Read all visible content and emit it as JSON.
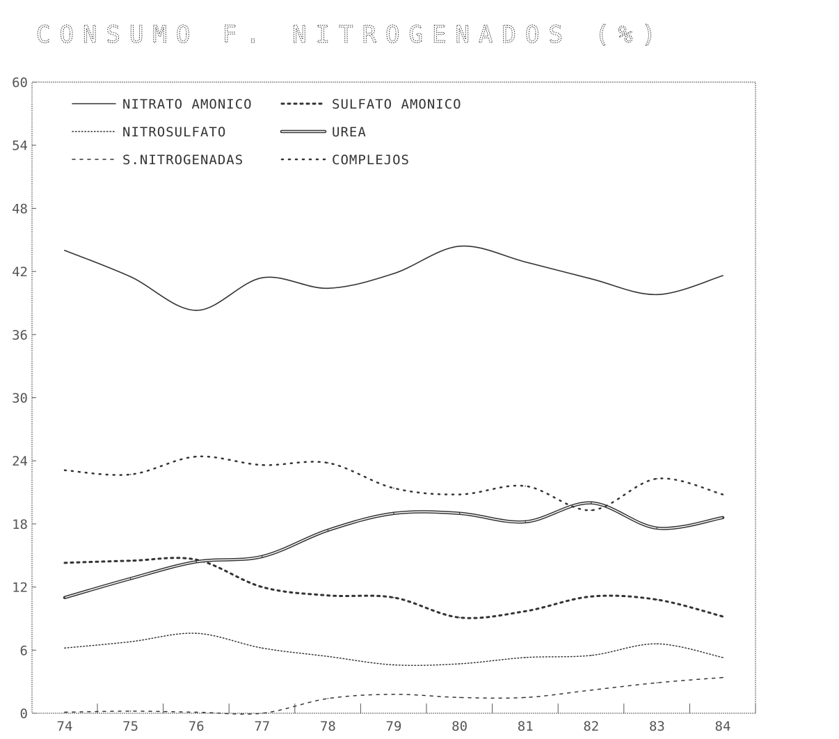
{
  "chart_data": {
    "type": "line",
    "title": "CONSUMO F. NITROGENADOS (%)",
    "xlabel": "",
    "ylabel": "",
    "categories": [
      "74",
      "75",
      "76",
      "77",
      "78",
      "79",
      "80",
      "81",
      "82",
      "83",
      "84"
    ],
    "y_ticks": [
      "0",
      "6",
      "12",
      "18",
      "24",
      "30",
      "36",
      "42",
      "48",
      "54",
      "60"
    ],
    "ylim": [
      0,
      60
    ],
    "grid": false,
    "legend_position": "top-left",
    "series": [
      {
        "name": "NITRATO AMONICO",
        "style": "solid",
        "values": [
          44.0,
          41.5,
          38.3,
          41.4,
          40.4,
          41.8,
          44.4,
          42.9,
          41.3,
          39.8,
          41.6
        ]
      },
      {
        "name": "SULFATO AMONICO",
        "style": "sparse-dots",
        "values": [
          14.3,
          14.5,
          14.6,
          12.0,
          11.2,
          11.0,
          9.1,
          9.7,
          11.1,
          10.8,
          9.2
        ]
      },
      {
        "name": "NITROSULFATO",
        "style": "dotted",
        "values": [
          6.2,
          6.8,
          7.6,
          6.2,
          5.4,
          4.6,
          4.7,
          5.3,
          5.5,
          6.6,
          5.3
        ]
      },
      {
        "name": "UREA",
        "style": "double",
        "values": [
          11.0,
          12.8,
          14.4,
          14.9,
          17.4,
          19.0,
          19.0,
          18.2,
          20.0,
          17.6,
          18.6
        ]
      },
      {
        "name": "S.NITROGENADAS",
        "style": "dashed",
        "values": [
          0.1,
          0.2,
          0.1,
          0.0,
          1.4,
          1.8,
          1.5,
          1.5,
          2.2,
          2.9,
          3.4
        ]
      },
      {
        "name": "COMPLEJOS",
        "style": "coarse-dots",
        "values": [
          23.1,
          22.7,
          24.4,
          23.6,
          23.8,
          21.4,
          20.8,
          21.6,
          19.3,
          22.3,
          20.8
        ]
      }
    ]
  }
}
